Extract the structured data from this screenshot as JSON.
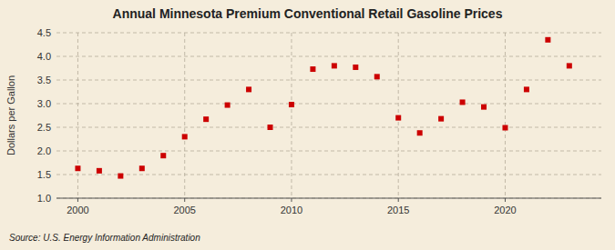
{
  "chart_data": {
    "type": "scatter",
    "title": "Annual Minnesota Premium Conventional Retail Gasoline Prices",
    "ylabel": "Dollars per Gallon",
    "source": "Source: U.S. Energy Information Administration",
    "x": [
      2000,
      2001,
      2002,
      2003,
      2004,
      2005,
      2006,
      2007,
      2008,
      2009,
      2010,
      2011,
      2012,
      2013,
      2014,
      2015,
      2016,
      2017,
      2018,
      2019,
      2020,
      2021,
      2022,
      2023
    ],
    "values": [
      1.63,
      1.58,
      1.47,
      1.63,
      1.9,
      2.3,
      2.67,
      2.97,
      3.3,
      2.5,
      2.98,
      3.73,
      3.8,
      3.77,
      3.57,
      2.7,
      2.38,
      2.68,
      3.03,
      2.93,
      2.49,
      3.3,
      4.35,
      3.8
    ],
    "color": "#cc0000",
    "marker": "square",
    "xlim": [
      1999,
      2024.5
    ],
    "xticks": [
      2000,
      2005,
      2010,
      2015,
      2020
    ],
    "ylim": [
      1.0,
      4.5
    ],
    "yticks": [
      {
        "value": 1.0,
        "label": "1.0"
      },
      {
        "value": 1.5,
        "label": "1.5"
      },
      {
        "value": 2.0,
        "label": "2.0"
      },
      {
        "value": 2.5,
        "label": "2.5"
      },
      {
        "value": 3.0,
        "label": "3.0"
      },
      {
        "value": 3.5,
        "label": "3.5"
      },
      {
        "value": 4.0,
        "label": "4.0"
      },
      {
        "value": 4.5,
        "label": "4.5"
      }
    ],
    "grid": true
  }
}
